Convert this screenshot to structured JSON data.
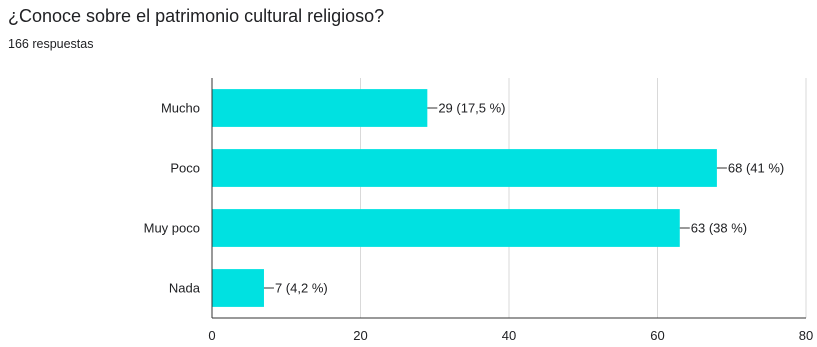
{
  "header": {
    "title": "¿Conoce sobre el patrimonio cultural religioso?",
    "subtitle": "166 respuestas"
  },
  "chart_data": {
    "type": "bar",
    "orientation": "horizontal",
    "title": "¿Conoce sobre el patrimonio cultural religioso?",
    "subtitle": "166 respuestas",
    "xlabel": "",
    "ylabel": "",
    "categories": [
      "Mucho",
      "Poco",
      "Muy poco",
      "Nada"
    ],
    "values": [
      29,
      68,
      63,
      7
    ],
    "data_labels": [
      "29 (17,5 %)",
      "68 (41 %)",
      "63 (38 %)",
      "7 (4,2 %)"
    ],
    "xlim": [
      0,
      80
    ],
    "xticks": [
      0,
      20,
      40,
      60,
      80
    ],
    "grid": true,
    "legend": "none",
    "colors": {
      "bar": "#00e1e1",
      "grid": "#d9d9d9",
      "axis": "#333333",
      "text": "#202124"
    }
  }
}
